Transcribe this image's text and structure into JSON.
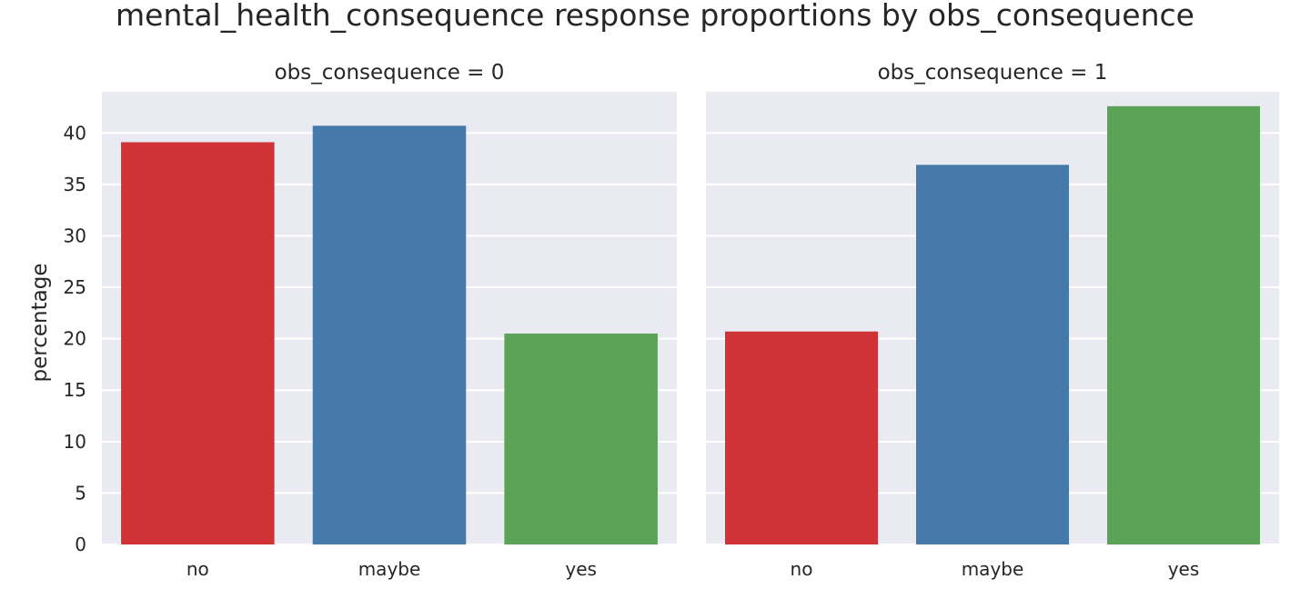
{
  "chart_data": {
    "type": "bar",
    "title": "mental_health_consequence response proportions by obs_consequence",
    "ylabel": "percentage",
    "xlabel": "",
    "ylim": [
      0,
      44
    ],
    "yticks": [
      0,
      5,
      10,
      15,
      20,
      25,
      30,
      35,
      40
    ],
    "grid": true,
    "categories": [
      "no",
      "maybe",
      "yes"
    ],
    "colors": [
      "#d03336",
      "#4579a9",
      "#5aa357"
    ],
    "panels": [
      {
        "title": "obs_consequence = 0",
        "values": [
          39.1,
          40.7,
          20.5
        ]
      },
      {
        "title": "obs_consequence = 1",
        "values": [
          20.7,
          36.9,
          42.6
        ]
      }
    ]
  }
}
